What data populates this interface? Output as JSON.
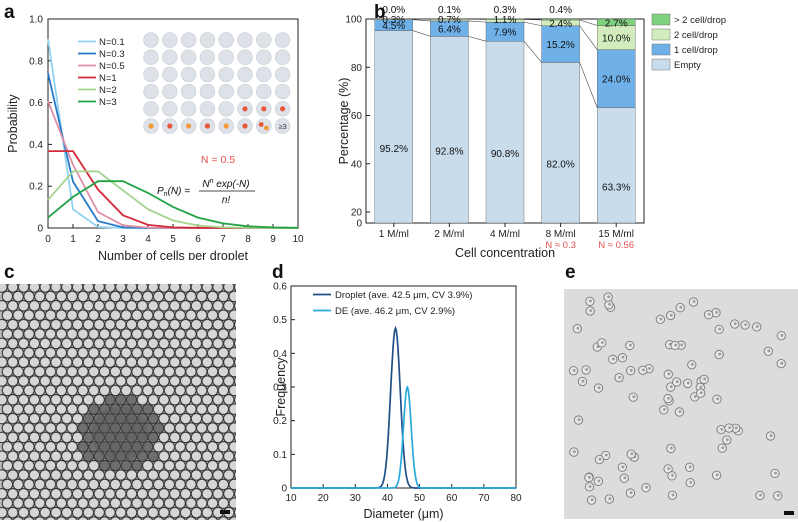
{
  "panels": {
    "a": "a",
    "b": "b",
    "c": "c",
    "d": "d",
    "e": "e"
  },
  "chart_data": [
    {
      "id": "a",
      "type": "line",
      "xlabel": "Number of cells per droplet",
      "ylabel": "Probability",
      "xlim": [
        0,
        10
      ],
      "ylim": [
        0,
        1.0
      ],
      "xticks": [
        "0",
        "1",
        "2",
        "3",
        "4",
        "5",
        "6",
        "7",
        "8",
        "9",
        "10"
      ],
      "yticks": [
        "0",
        "0.2",
        "0.4",
        "0.6",
        "0.8",
        "1.0"
      ],
      "x": [
        0,
        1,
        2,
        3,
        4,
        5,
        6,
        7,
        8,
        9,
        10
      ],
      "series": [
        {
          "name": "N=0.1",
          "color": "#8fd3f0",
          "values": [
            0.905,
            0.09,
            0.005,
            0,
            0,
            0,
            0,
            0,
            0,
            0,
            0
          ]
        },
        {
          "name": "N=0.3",
          "color": "#2979c9",
          "values": [
            0.741,
            0.222,
            0.033,
            0.003,
            0,
            0,
            0,
            0,
            0,
            0,
            0
          ]
        },
        {
          "name": "N=0.5",
          "color": "#e090a6",
          "values": [
            0.607,
            0.303,
            0.076,
            0.013,
            0.002,
            0,
            0,
            0,
            0,
            0,
            0
          ]
        },
        {
          "name": "N=1",
          "color": "#d22a38",
          "values": [
            0.368,
            0.368,
            0.184,
            0.061,
            0.015,
            0.003,
            0.001,
            0,
            0,
            0,
            0
          ]
        },
        {
          "name": "N=2",
          "color": "#a4d48e",
          "values": [
            0.135,
            0.271,
            0.271,
            0.18,
            0.09,
            0.036,
            0.012,
            0.003,
            0.001,
            0,
            0
          ]
        },
        {
          "name": "N=3",
          "color": "#22a345",
          "values": [
            0.05,
            0.149,
            0.224,
            0.224,
            0.168,
            0.101,
            0.05,
            0.022,
            0.008,
            0.003,
            0.001
          ]
        }
      ],
      "inset": {
        "label": "N = 0.5",
        "badge": "≥3",
        "formula_lhs": "P",
        "formula_sub": "n",
        "formula_arg": "(N) =",
        "formula_num": "N",
        "formula_num_sup": "n",
        "formula_num_rest": " exp(-N)",
        "formula_den": "n!",
        "rows_cells": [
          0,
          0,
          0,
          0,
          1,
          2
        ],
        "counts": [
          [
            0,
            0,
            0,
            0,
            0,
            0,
            0,
            0
          ],
          [
            0,
            0,
            0,
            0,
            0,
            0,
            0,
            0
          ],
          [
            0,
            0,
            0,
            0,
            0,
            0,
            0,
            0
          ],
          [
            0,
            0,
            0,
            0,
            0,
            0,
            0,
            0
          ],
          [
            0,
            0,
            0,
            0,
            0,
            1,
            1,
            1
          ],
          [
            1,
            1,
            1,
            1,
            1,
            1,
            2,
            3
          ]
        ],
        "colors": {
          "empty": "#dde1e8",
          "one": "#e8573a",
          "two": "#f29a3a",
          "badge_text": "#333333",
          "label": "#e05050"
        }
      }
    },
    {
      "id": "b",
      "type": "bar",
      "xlabel": "Cell concentration",
      "ylabel": "Percentage (%)",
      "yticks": [
        "0",
        "20",
        "40",
        "60",
        "80",
        "100"
      ],
      "categories": [
        "1 M/ml",
        "2 M/ml",
        "4 M/ml",
        "8 M/ml",
        "15 M/ml"
      ],
      "annotations": [
        "",
        "",
        "",
        "N ≈ 0.3",
        "N ≈ 0.56"
      ],
      "series": [
        {
          "name": "Empty",
          "color": "#c9dcec",
          "values": [
            95.2,
            92.8,
            90.8,
            82.0,
            63.3
          ],
          "labels": [
            "95.2%",
            "92.8%",
            "90.8%",
            "82.0%",
            "63.3%"
          ]
        },
        {
          "name": "1 cell/drop",
          "color": "#6fb0e8",
          "values": [
            4.5,
            6.4,
            7.9,
            15.2,
            24.0
          ],
          "labels": [
            "4.5%",
            "6.4%",
            "7.9%",
            "15.2%",
            "24.0%"
          ]
        },
        {
          "name": "2 cell/drop",
          "color": "#d3ecbe",
          "values": [
            0.3,
            0.7,
            1.1,
            2.4,
            10.0
          ],
          "labels": [
            "0.3%",
            "0.7%",
            "1.1%",
            "2.4%",
            "10.0%"
          ]
        },
        {
          "name": "> 2 cell/drop",
          "color": "#7ed27e",
          "values": [
            0.0,
            0.1,
            0.3,
            0.4,
            2.7
          ],
          "labels": [
            "0.0%",
            "0.1%",
            "0.3%",
            "0.4%",
            "2.7%"
          ]
        }
      ],
      "legend_order": [
        "> 2 cell/drop",
        "2 cell/drop",
        "1 cell/drop",
        "Empty"
      ],
      "annotation_color": "#e05050"
    },
    {
      "id": "d",
      "type": "line",
      "xlabel": "Diameter (μm)",
      "ylabel": "Frequency",
      "xlim": [
        10,
        80
      ],
      "ylim": [
        0,
        0.6
      ],
      "xticks": [
        "10",
        "20",
        "30",
        "40",
        "50",
        "60",
        "70",
        "80"
      ],
      "yticks": [
        "0",
        "0.1",
        "0.2",
        "0.3",
        "0.4",
        "0.5",
        "0.6"
      ],
      "series": [
        {
          "name": "Droplet (ave. 42.5 μm, CV 3.9%)",
          "color": "#1f4f86",
          "mean": 42.5,
          "peak": 0.475,
          "cv_percent": 3.9
        },
        {
          "name": "DE (ave. 46.2 μm, CV 2.9%)",
          "color": "#29a9d8",
          "mean": 46.2,
          "peak": 0.3,
          "cv_percent": 2.9
        }
      ]
    }
  ]
}
